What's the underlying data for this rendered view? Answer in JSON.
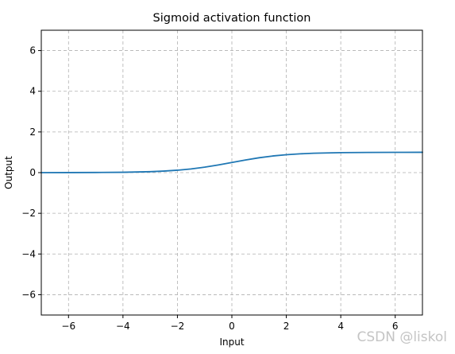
{
  "chart_data": {
    "type": "line",
    "title": "Sigmoid activation function",
    "xlabel": "Input",
    "ylabel": "Output",
    "xlim": [
      -7,
      7
    ],
    "ylim": [
      -7,
      7
    ],
    "xticks": [
      -6,
      -4,
      -2,
      0,
      2,
      4,
      6
    ],
    "yticks": [
      -6,
      -4,
      -2,
      0,
      2,
      4,
      6
    ],
    "grid": true,
    "grid_style": "dashed",
    "series": [
      {
        "color": "#1f77b4",
        "x": [
          -7,
          -6,
          -5,
          -4,
          -3,
          -2.5,
          -2,
          -1.5,
          -1,
          -0.5,
          0,
          0.5,
          1,
          1.5,
          2,
          2.5,
          3,
          4,
          5,
          6,
          7
        ],
        "y": [
          0.0009,
          0.0025,
          0.0067,
          0.018,
          0.047,
          0.076,
          0.119,
          0.182,
          0.269,
          0.378,
          0.5,
          0.622,
          0.731,
          0.818,
          0.881,
          0.924,
          0.953,
          0.982,
          0.993,
          0.998,
          0.999
        ]
      }
    ]
  },
  "watermark": "CSDN @liskol"
}
